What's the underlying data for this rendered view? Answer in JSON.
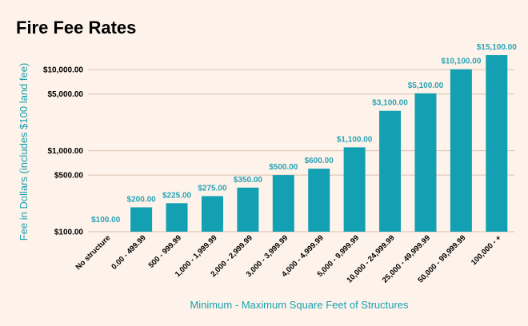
{
  "colors": {
    "background": "#fdf3ea",
    "bar": "#14a0b3",
    "data_label": "#2aa3b5",
    "axis_title": "#1aa0b0",
    "grid": "#dcbfb0"
  },
  "chart_data": {
    "type": "bar",
    "title": "Fire Fee Rates",
    "xlabel": "Minimum - Maximum Square Feet of Structures",
    "ylabel": "Fee in Dollars (includes $100 land fee)",
    "yscale": "log",
    "ylim": [
      100,
      15100
    ],
    "grid": true,
    "categories": [
      "No structure",
      "0.00 - 499.99",
      "500 - 999.99",
      "1,000 - 1,999.99",
      "2,000 - 2,999.99",
      "3,000 - 3,999.99",
      "4,000 - 4,999.99",
      "5,000 - 9,999.99",
      "10,000 - 24,999.99",
      "25,000 - 49,999.99",
      "50,000 - 99,999.99",
      "100,000 - +"
    ],
    "values": [
      100,
      200,
      225,
      275,
      350,
      500,
      600,
      1100,
      3100,
      5100,
      10100,
      15100
    ],
    "data_labels": [
      "$100.00",
      "$200.00",
      "$225.00",
      "$275.00",
      "$350.00",
      "$500.00",
      "$600.00",
      "$1,100.00",
      "$3,100.00",
      "$5,100.00",
      "$10,100.00",
      "$15,100.00"
    ],
    "y_ticks": [
      {
        "value": 100,
        "label": "$100.00"
      },
      {
        "value": 500,
        "label": "$500.00"
      },
      {
        "value": 1000,
        "label": "$1,000.00"
      },
      {
        "value": 5000,
        "label": "$5,000.00"
      },
      {
        "value": 10000,
        "label": "$10,000.00"
      }
    ]
  }
}
